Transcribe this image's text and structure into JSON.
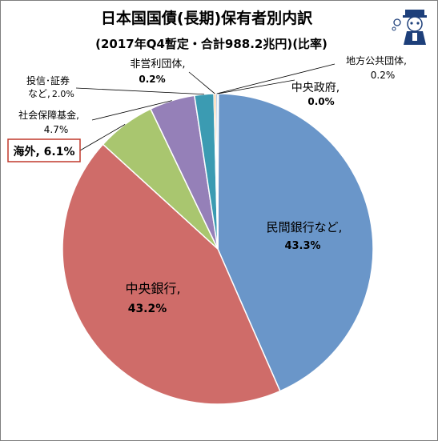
{
  "chart_data": {
    "type": "pie",
    "title": "日本国国債(長期)保有者別内訳",
    "subtitle": "(2017年Q4暫定・合計988.2兆円)(比率)",
    "slices": [
      {
        "name": "民間銀行など",
        "value": 43.3,
        "label": "民間銀行など,",
        "value_label": "43.3%",
        "color": "#6a96c9"
      },
      {
        "name": "中央銀行",
        "value": 43.2,
        "label": "中央銀行,",
        "value_label": "43.2%",
        "color": "#cf6c69"
      },
      {
        "name": "海外",
        "value": 6.1,
        "label": "海外, 6.1%",
        "color": "#a9c66f"
      },
      {
        "name": "社会保障基金",
        "value": 4.7,
        "label": "社会保障基金,",
        "value_label": "4.7%",
        "color": "#9580b8"
      },
      {
        "name": "投信・証券など",
        "value": 2.0,
        "label": "投信･証券",
        "label2": "など,",
        "value_label": "2.0%",
        "color": "#3b9bb2"
      },
      {
        "name": "非営利団体",
        "value": 0.2,
        "label": "非営利団体,",
        "value_label": "0.2%",
        "color": "#f39a3c"
      },
      {
        "name": "地方公共団体",
        "value": 0.2,
        "label": "地方公共団体,",
        "value_label": "0.2%",
        "color": "#8fb0d8"
      },
      {
        "name": "中央政府",
        "value": 0.0,
        "label": "中央政府,",
        "value_label": "0.0%",
        "color": "#e39996"
      }
    ]
  }
}
